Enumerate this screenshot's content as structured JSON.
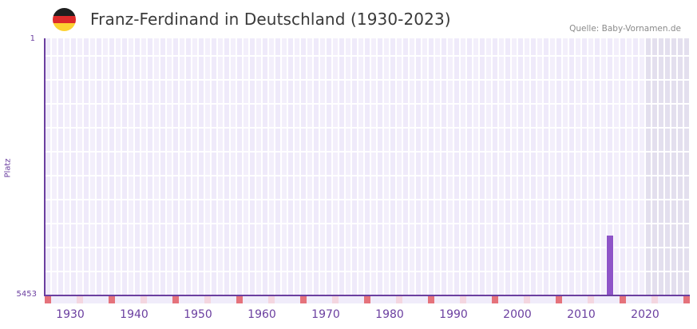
{
  "header": {
    "flag_icon": "germany-flag-icon",
    "title": "Franz-Ferdinand in Deutschland (1930-2023)",
    "source": "Quelle: Baby-Vornamen.de"
  },
  "colors": {
    "accent": "#6b3fa0",
    "bar": "#8e55c8",
    "cell_a": "#efeafa",
    "cell_b": "#f3effb",
    "cell_future": "#e3dfee",
    "marker_decade": "#e5727b",
    "marker_mid": "#f4d6e0",
    "marker_plain": "#f0ecfa"
  },
  "chart_data": {
    "type": "bar",
    "title": "Franz-Ferdinand in Deutschland (1930-2023)",
    "xlabel": "",
    "ylabel": "Platz",
    "y_axis_inverted": true,
    "ylim": [
      1,
      5453
    ],
    "y_ticks": [
      "1",
      "5453"
    ],
    "x_range": [
      1928,
      2028
    ],
    "x_ticks": [
      1930,
      1940,
      1950,
      1960,
      1970,
      1980,
      1990,
      2000,
      2010,
      2020
    ],
    "grid": true,
    "future_shaded_from": 2022,
    "categories": [
      2016
    ],
    "values": [
      4183
    ],
    "series": [
      {
        "name": "Platz",
        "points": [
          {
            "year": 2016,
            "rank": 4183
          }
        ]
      }
    ]
  },
  "axis": {
    "y_top_label": "1",
    "y_bottom_label": "5453",
    "y_title": "Platz",
    "x_labels": [
      "1930",
      "1940",
      "1950",
      "1960",
      "1970",
      "1980",
      "1990",
      "2000",
      "2010",
      "2020"
    ]
  }
}
